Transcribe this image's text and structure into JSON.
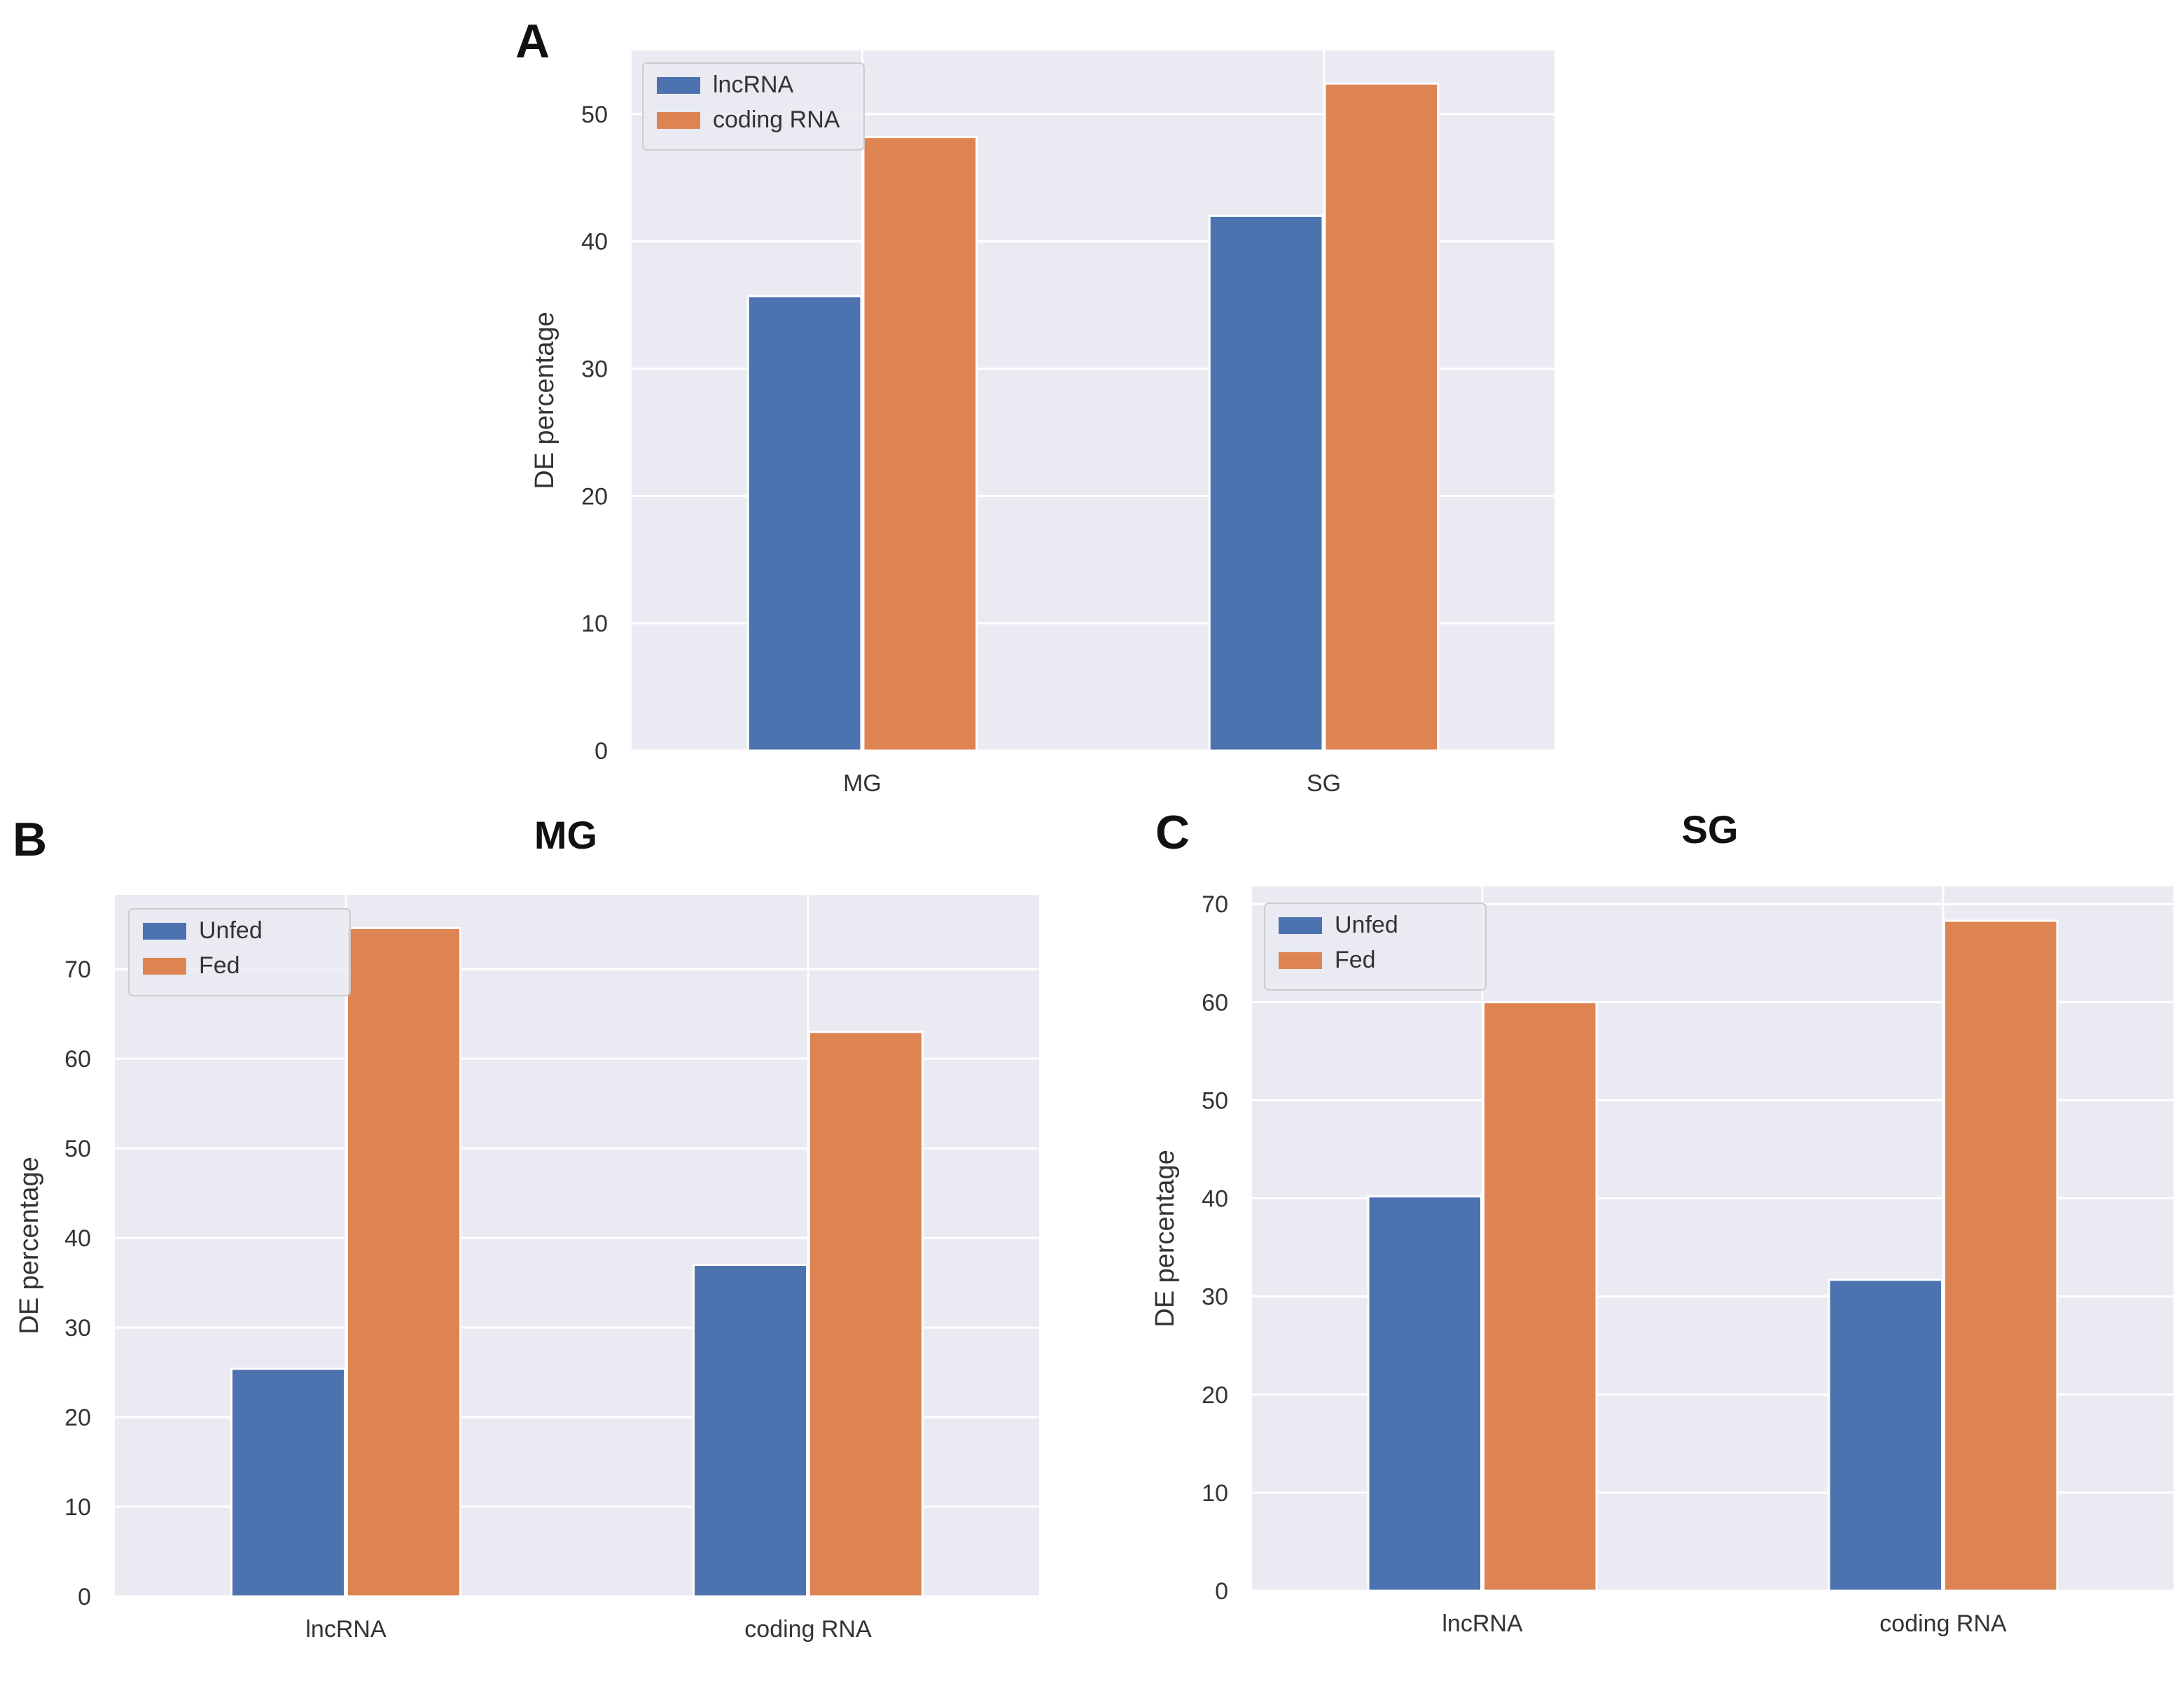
{
  "colors": {
    "blue": "#4c72b0",
    "orange": "#dd8452",
    "plot_bg": "#eaeaf2",
    "grid": "#ffffff"
  },
  "chart_data": [
    {
      "panel": "A",
      "type": "bar",
      "title": "",
      "categories": [
        "MG",
        "SG"
      ],
      "series": [
        {
          "name": "lncRNA",
          "values": [
            35.7,
            42.0
          ]
        },
        {
          "name": "coding RNA",
          "values": [
            48.2,
            52.4
          ]
        }
      ],
      "ylabel": "DE percentage",
      "xlabel": "",
      "ylim": [
        0,
        55
      ],
      "yticks": [
        0,
        10,
        20,
        30,
        40,
        50
      ],
      "legend": "top-left",
      "grid": true
    },
    {
      "panel": "B",
      "type": "bar",
      "title": "MG",
      "categories": [
        "lncRNA",
        "coding RNA"
      ],
      "series": [
        {
          "name": "Unfed",
          "values": [
            25.4,
            37.0
          ]
        },
        {
          "name": "Fed",
          "values": [
            74.6,
            63.0
          ]
        }
      ],
      "ylabel": "DE percentage",
      "xlabel": "",
      "ylim": [
        0,
        78.3
      ],
      "yticks": [
        0,
        10,
        20,
        30,
        40,
        50,
        60,
        70
      ],
      "legend": "top-left",
      "grid": true
    },
    {
      "panel": "C",
      "type": "bar",
      "title": "SG",
      "categories": [
        "lncRNA",
        "coding RNA"
      ],
      "series": [
        {
          "name": "Unfed",
          "values": [
            40.2,
            31.7
          ]
        },
        {
          "name": "Fed",
          "values": [
            60.0,
            68.3
          ]
        }
      ],
      "ylabel": "DE percentage",
      "xlabel": "",
      "ylim": [
        0,
        71.8
      ],
      "yticks": [
        0,
        10,
        20,
        30,
        40,
        50,
        60,
        70
      ],
      "legend": "top-left",
      "grid": true
    }
  ]
}
